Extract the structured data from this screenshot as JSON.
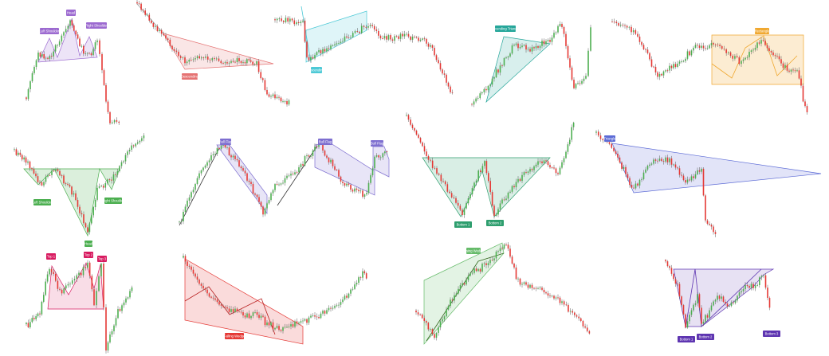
{
  "colors": {
    "bull": "#4caf50",
    "bear": "#e53935",
    "wick": "#5a5a5a"
  },
  "chart_data": [
    {
      "type": "candlestick",
      "pattern": "head-and-shoulders",
      "labels": [
        "Left Shoulder",
        "Head",
        "Right Shoulder"
      ],
      "shape_color": "#9c6ad0"
    },
    {
      "type": "candlestick",
      "pattern": "falling-wedge",
      "labels": [
        "Descending"
      ],
      "shape_color": "#e57373"
    },
    {
      "type": "candlestick",
      "pattern": "rising-channel",
      "labels": [
        "Ascending"
      ],
      "shape_color": "#4dc9d6"
    },
    {
      "type": "candlestick",
      "pattern": "ascending-triangle",
      "labels": [
        "Ascending Triangle"
      ],
      "shape_color": "#26a69a"
    },
    {
      "type": "candlestick",
      "pattern": "rectangle",
      "labels": [
        "Rectangle"
      ],
      "shape_color": "#f0a830"
    },
    {
      "type": "candlestick",
      "pattern": "inverse-head-and-shoulders",
      "labels": [
        "Left Shoulder",
        "Head",
        "Right Shoulder"
      ],
      "shape_color": "#4caf50"
    },
    {
      "type": "candlestick",
      "pattern": "bull-flags",
      "labels": [
        "Bull Flag",
        "Bull Flag",
        "Bull Flag"
      ],
      "shape_color": "#7e6fd0"
    },
    {
      "type": "candlestick",
      "pattern": "double-bottom",
      "labels": [
        "Bottom 1",
        "Bottom 2"
      ],
      "shape_color": "#2e9e6e"
    },
    {
      "type": "candlestick",
      "pattern": "symmetrical-triangle",
      "labels": [
        "Triangle"
      ],
      "shape_color": "#5c6bd6"
    },
    {
      "type": "candlestick",
      "pattern": "triple-top",
      "labels": [
        "Top 1",
        "Top 2",
        "Top 3"
      ],
      "shape_color": "#d81b60"
    },
    {
      "type": "candlestick",
      "pattern": "falling-wedge",
      "labels": [
        "Falling Wedge"
      ],
      "shape_color": "#e53935"
    },
    {
      "type": "candlestick",
      "pattern": "rising-wedge",
      "labels": [
        "Rising Wedge"
      ],
      "shape_color": "#66bb6a"
    },
    {
      "type": "candlestick",
      "pattern": "triple-bottom",
      "labels": [
        "Bottom 1",
        "Bottom 2",
        "Bottom 3"
      ],
      "shape_color": "#5e35b1"
    }
  ]
}
